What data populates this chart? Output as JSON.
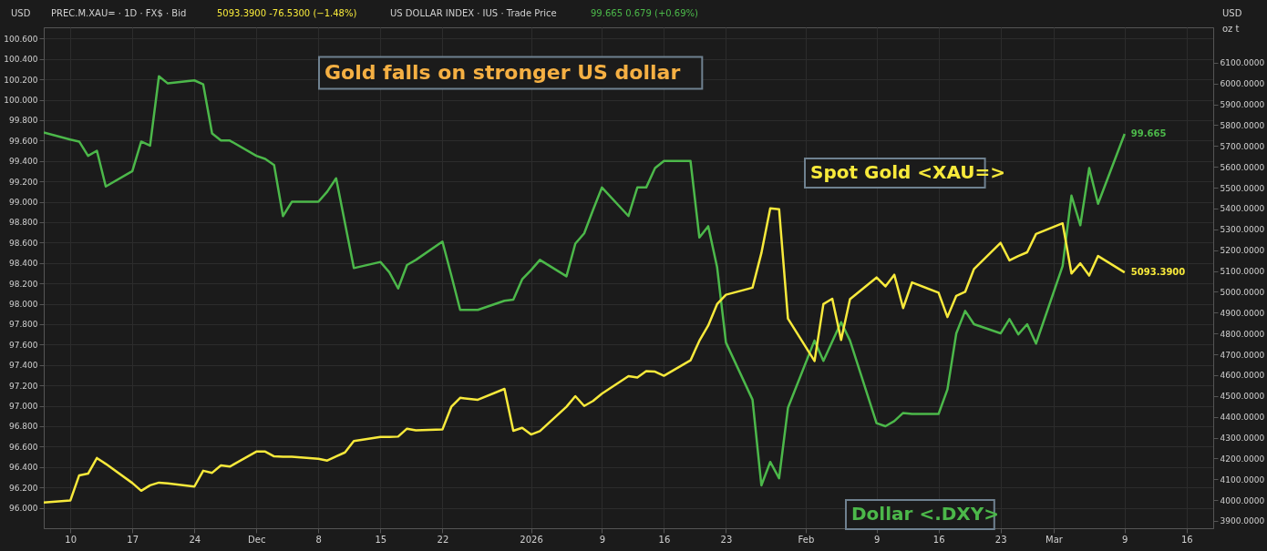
{
  "chart_data": {
    "type": "line",
    "title": "Gold falls on stronger US dollar",
    "annotations": [
      "USD",
      "PREC.M.XAU= · 1D · FX$ · Bid",
      "5093.3900  -76.5300 (−1.48%)",
      "US DOLLAR INDEX · IUS · Trade Price",
      "99.665  0.679 (+0.69%)",
      "USD",
      "oz t"
    ],
    "x": [
      "2025-11-07",
      "2025-11-10",
      "2025-11-11",
      "2025-11-12",
      "2025-11-13",
      "2025-11-14",
      "2025-11-17",
      "2025-11-18",
      "2025-11-19",
      "2025-11-20",
      "2025-11-21",
      "2025-11-24",
      "2025-11-25",
      "2025-11-26",
      "2025-11-27",
      "2025-11-28",
      "2025-12-01",
      "2025-12-02",
      "2025-12-03",
      "2025-12-04",
      "2025-12-05",
      "2025-12-08",
      "2025-12-09",
      "2025-12-10",
      "2025-12-11",
      "2025-12-12",
      "2025-12-15",
      "2025-12-16",
      "2025-12-17",
      "2025-12-18",
      "2025-12-19",
      "2025-12-22",
      "2025-12-23",
      "2025-12-24",
      "2025-12-26",
      "2025-12-29",
      "2025-12-30",
      "2025-12-31",
      "2026-01-01",
      "2026-01-02",
      "2026-01-05",
      "2026-01-06",
      "2026-01-07",
      "2026-01-08",
      "2026-01-09",
      "2026-01-12",
      "2026-01-13",
      "2026-01-14",
      "2026-01-15",
      "2026-01-16",
      "2026-01-19",
      "2026-01-20",
      "2026-01-21",
      "2026-01-22",
      "2026-01-23",
      "2026-01-26",
      "2026-01-27",
      "2026-01-28",
      "2026-01-29",
      "2026-01-30",
      "2026-02-02",
      "2026-02-03",
      "2026-02-04",
      "2026-02-05",
      "2026-02-06",
      "2026-02-09",
      "2026-02-10",
      "2026-02-11",
      "2026-02-12",
      "2026-02-13",
      "2026-02-16",
      "2026-02-17",
      "2026-02-18",
      "2026-02-19",
      "2026-02-20",
      "2026-02-23",
      "2026-02-24",
      "2026-02-25",
      "2026-02-26",
      "2026-02-27",
      "2026-03-02",
      "2026-03-03",
      "2026-03-04",
      "2026-03-05",
      "2026-03-06",
      "2026-03-09"
    ],
    "series": [
      {
        "name": "Dollar <.DXY>",
        "color": "#4cb84a",
        "axis": "y",
        "value_labels": [
          null,
          null,
          null,
          null,
          null,
          null,
          null,
          null,
          null,
          null,
          null,
          null,
          null,
          null,
          null,
          null,
          null,
          null,
          null,
          null,
          null,
          null,
          null,
          null,
          null,
          null,
          null,
          null,
          null,
          null,
          null,
          null,
          null,
          null,
          null,
          null,
          null,
          null,
          null,
          null,
          null,
          null,
          null,
          null,
          null,
          null,
          null,
          null,
          null,
          null,
          null,
          null,
          null,
          null,
          null,
          null,
          null,
          null,
          null,
          null,
          null,
          null,
          null,
          null,
          null,
          null,
          null,
          null,
          null,
          null,
          null,
          null,
          null,
          null,
          null,
          null,
          null,
          null,
          null,
          null,
          null,
          null,
          null,
          null,
          null,
          "99.665"
        ],
        "values": [
          99.68,
          99.61,
          99.59,
          99.45,
          99.5,
          99.15,
          99.3,
          99.59,
          99.55,
          100.23,
          100.16,
          100.19,
          100.15,
          99.67,
          99.6,
          99.6,
          99.45,
          99.42,
          99.36,
          98.86,
          99.0,
          99.0,
          99.1,
          99.23,
          98.79,
          98.35,
          98.41,
          98.31,
          98.15,
          98.38,
          98.43,
          98.61,
          98.28,
          97.94,
          97.94,
          98.03,
          98.04,
          98.24,
          98.33,
          98.43,
          98.27,
          98.59,
          98.69,
          98.92,
          99.14,
          98.86,
          99.14,
          99.14,
          99.33,
          99.4,
          99.4,
          98.65,
          98.76,
          98.36,
          97.62,
          97.06,
          96.22,
          96.45,
          96.29,
          96.98,
          97.64,
          97.44,
          97.63,
          97.82,
          97.64,
          96.83,
          96.8,
          96.85,
          96.93,
          96.92,
          96.92,
          97.16,
          97.71,
          97.93,
          97.8,
          97.71,
          97.85,
          97.7,
          97.8,
          97.61,
          98.37,
          99.06,
          98.77,
          99.33,
          98.98,
          99.665
        ]
      },
      {
        "name": "Spot Gold <XAU=>",
        "color": "#f7e93b",
        "axis": "y2",
        "value_labels": [
          null,
          null,
          null,
          null,
          null,
          null,
          null,
          null,
          null,
          null,
          null,
          null,
          null,
          null,
          null,
          null,
          null,
          null,
          null,
          null,
          null,
          null,
          null,
          null,
          null,
          null,
          null,
          null,
          null,
          null,
          null,
          null,
          null,
          null,
          null,
          null,
          null,
          null,
          null,
          null,
          null,
          null,
          null,
          null,
          null,
          null,
          null,
          null,
          null,
          null,
          null,
          null,
          null,
          null,
          null,
          null,
          null,
          null,
          null,
          null,
          null,
          null,
          null,
          null,
          null,
          null,
          null,
          null,
          null,
          null,
          null,
          null,
          null,
          null,
          null,
          null,
          null,
          null,
          null,
          null,
          null,
          null,
          null,
          null,
          null,
          "5093.3900"
        ],
        "values": [
          3988,
          3998,
          4119,
          4127,
          4202,
          4174,
          4082,
          4045,
          4071,
          4084,
          4080,
          4065,
          4141,
          4131,
          4167,
          4161,
          4233,
          4233,
          4210,
          4208,
          4208,
          4198,
          4190,
          4210,
          4229,
          4284,
          4303,
          4303,
          4305,
          4343,
          4335,
          4339,
          4448,
          4491,
          4482,
          4534,
          4333,
          4347,
          4315,
          4331,
          4448,
          4499,
          4452,
          4476,
          4511,
          4595,
          4589,
          4619,
          4617,
          4597,
          4671,
          4765,
          4838,
          4941,
          4986,
          5020,
          5186,
          5401,
          5397,
          4871,
          4668,
          4941,
          4967,
          4769,
          4965,
          5069,
          5026,
          5082,
          4922,
          5045,
          4996,
          4879,
          4981,
          5000,
          5110,
          5235,
          5151,
          5172,
          5190,
          5278,
          5329,
          5088,
          5137,
          5078,
          5172,
          5093.39
        ]
      }
    ],
    "xlim": [
      "2025-11-07",
      "2026-03-19"
    ],
    "xticks": [
      {
        "value": "2025-11-10",
        "label": "10"
      },
      {
        "value": "2025-11-17",
        "label": "17"
      },
      {
        "value": "2025-11-24",
        "label": "24"
      },
      {
        "value": "2025-12-01",
        "label": "Dec"
      },
      {
        "value": "2025-12-08",
        "label": "8"
      },
      {
        "value": "2025-12-15",
        "label": "15"
      },
      {
        "value": "2025-12-22",
        "label": "22"
      },
      {
        "value": "2026-01-01",
        "label": "2026"
      },
      {
        "value": "2026-01-09",
        "label": "9"
      },
      {
        "value": "2026-01-16",
        "label": "16"
      },
      {
        "value": "2026-01-23",
        "label": "23"
      },
      {
        "value": "2026-02-01",
        "label": "Feb"
      },
      {
        "value": "2026-02-09",
        "label": "9"
      },
      {
        "value": "2026-02-16",
        "label": "16"
      },
      {
        "value": "2026-02-23",
        "label": "23"
      },
      {
        "value": "2026-03-01",
        "label": "Mar"
      },
      {
        "value": "2026-03-09",
        "label": "9"
      },
      {
        "value": "2026-03-16",
        "label": "16"
      }
    ],
    "ylim": [
      95.8,
      100.71
    ],
    "yticks": [
      {
        "value": 96.0,
        "label": "96.000"
      },
      {
        "value": 96.2,
        "label": "96.200"
      },
      {
        "value": 96.4,
        "label": "96.400"
      },
      {
        "value": 96.6,
        "label": "96.600"
      },
      {
        "value": 96.8,
        "label": "96.800"
      },
      {
        "value": 97.0,
        "label": "97.000"
      },
      {
        "value": 97.2,
        "label": "97.200"
      },
      {
        "value": 97.4,
        "label": "97.400"
      },
      {
        "value": 97.6,
        "label": "97.600"
      },
      {
        "value": 97.8,
        "label": "97.800"
      },
      {
        "value": 98.0,
        "label": "98.000"
      },
      {
        "value": 98.2,
        "label": "98.200"
      },
      {
        "value": 98.4,
        "label": "98.400"
      },
      {
        "value": 98.6,
        "label": "98.600"
      },
      {
        "value": 98.8,
        "label": "98.800"
      },
      {
        "value": 99.0,
        "label": "99.000"
      },
      {
        "value": 99.2,
        "label": "99.200"
      },
      {
        "value": 99.4,
        "label": "99.400"
      },
      {
        "value": 99.6,
        "label": "99.600"
      },
      {
        "value": 99.8,
        "label": "99.800"
      },
      {
        "value": 100.0,
        "label": "100.000"
      },
      {
        "value": 100.2,
        "label": "100.200"
      },
      {
        "value": 100.4,
        "label": "100.400"
      },
      {
        "value": 100.6,
        "label": "100.600"
      }
    ],
    "y2lim": [
      3865,
      6270
    ],
    "y2ticks": [
      {
        "value": 3900,
        "label": "3900.0000"
      },
      {
        "value": 4000,
        "label": "4000.0000"
      },
      {
        "value": 4100,
        "label": "4100.0000"
      },
      {
        "value": 4200,
        "label": "4200.0000"
      },
      {
        "value": 4300,
        "label": "4300.0000"
      },
      {
        "value": 4400,
        "label": "4400.0000"
      },
      {
        "value": 4500,
        "label": "4500.0000"
      },
      {
        "value": 4600,
        "label": "4600.0000"
      },
      {
        "value": 4700,
        "label": "4700.0000"
      },
      {
        "value": 4800,
        "label": "4800.0000"
      },
      {
        "value": 4900,
        "label": "4900.0000"
      },
      {
        "value": 5000,
        "label": "5000.0000"
      },
      {
        "value": 5100,
        "label": "5100.0000"
      },
      {
        "value": 5200,
        "label": "5200.0000"
      },
      {
        "value": 5300,
        "label": "5300.0000"
      },
      {
        "value": 5400,
        "label": "5400.0000"
      },
      {
        "value": 5500,
        "label": "5500.0000"
      },
      {
        "value": 5600,
        "label": "5600.0000"
      },
      {
        "value": 5700,
        "label": "5700.0000"
      },
      {
        "value": 5800,
        "label": "5800.0000"
      },
      {
        "value": 5900,
        "label": "5900.0000"
      },
      {
        "value": 6000,
        "label": "6000.0000"
      },
      {
        "value": 6100,
        "label": "6100.0000"
      }
    ],
    "grid": true,
    "line_style": "solid",
    "marker": "none"
  }
}
